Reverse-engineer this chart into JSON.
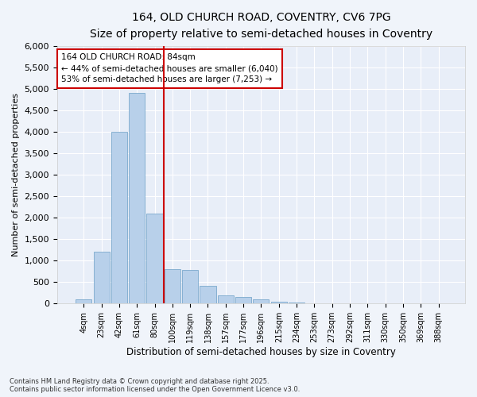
{
  "title_line1": "164, OLD CHURCH ROAD, COVENTRY, CV6 7PG",
  "title_line2": "Size of property relative to semi-detached houses in Coventry",
  "xlabel": "Distribution of semi-detached houses by size in Coventry",
  "ylabel": "Number of semi-detached properties",
  "categories": [
    "4sqm",
    "23sqm",
    "42sqm",
    "61sqm",
    "80sqm",
    "100sqm",
    "119sqm",
    "138sqm",
    "157sqm",
    "177sqm",
    "196sqm",
    "215sqm",
    "234sqm",
    "253sqm",
    "273sqm",
    "292sqm",
    "311sqm",
    "330sqm",
    "350sqm",
    "369sqm",
    "388sqm"
  ],
  "values": [
    100,
    1200,
    4000,
    4900,
    2100,
    800,
    780,
    420,
    200,
    150,
    100,
    50,
    20,
    10,
    5,
    3,
    2,
    1,
    1,
    0,
    0
  ],
  "bar_color": "#b8d0ea",
  "bar_edge_color": "#6a9ec5",
  "vline_color": "#cc0000",
  "annotation_text": "164 OLD CHURCH ROAD: 84sqm\n← 44% of semi-detached houses are smaller (6,040)\n53% of semi-detached houses are larger (7,253) →",
  "annotation_box_color": "#cc0000",
  "ylim": [
    0,
    6000
  ],
  "yticks": [
    0,
    500,
    1000,
    1500,
    2000,
    2500,
    3000,
    3500,
    4000,
    4500,
    5000,
    5500,
    6000
  ],
  "footer_line1": "Contains HM Land Registry data © Crown copyright and database right 2025.",
  "footer_line2": "Contains public sector information licensed under the Open Government Licence v3.0.",
  "background_color": "#f0f4fa",
  "plot_bg_color": "#e8eef8"
}
